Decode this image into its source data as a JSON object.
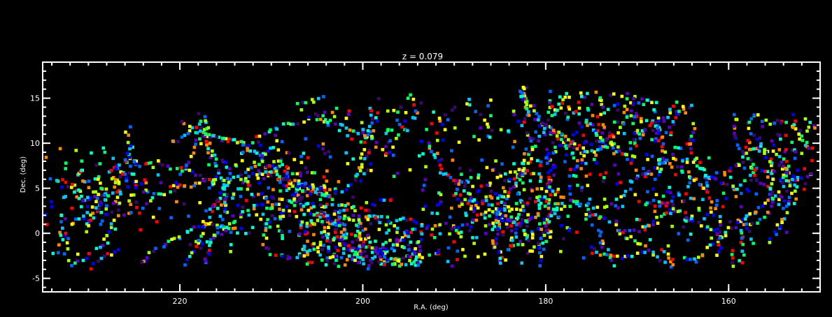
{
  "chart_data": {
    "type": "scatter",
    "title": "z = 0.079",
    "xlabel": "R.A. (deg)",
    "ylabel": "Dec. (deg)",
    "xlim": [
      235,
      150
    ],
    "ylim": [
      -6.5,
      19
    ],
    "x_reversed": true,
    "x_ticks": [
      220,
      200,
      180,
      160
    ],
    "y_ticks": [
      -5,
      0,
      5,
      10,
      15
    ],
    "x_minor_step": 2,
    "y_minor_step": 1,
    "grid": false,
    "colormap": "rainbow",
    "colors": {
      "background": "#000000",
      "axes": "#ffffff",
      "text": "#ffffff",
      "palette": [
        "#3a0a6b",
        "#5a00c0",
        "#0000ff",
        "#0066ff",
        "#00c8ff",
        "#00ffcc",
        "#00ff66",
        "#aaff00",
        "#ffff00",
        "#ff8800",
        "#ff0000"
      ]
    },
    "clusters": [
      {
        "x": 227.5,
        "y": 5.5,
        "n": 140,
        "sx": 2.5,
        "sy": 2.0
      },
      {
        "x": 208.0,
        "y": 5.5,
        "n": 120,
        "sx": 2.5,
        "sy": 2.5
      },
      {
        "x": 204.5,
        "y": 1.5,
        "n": 100,
        "sx": 2.5,
        "sy": 2.0
      },
      {
        "x": 201.0,
        "y": -1.5,
        "n": 90,
        "sx": 3.0,
        "sy": 1.5
      },
      {
        "x": 195.5,
        "y": -2.5,
        "n": 100,
        "sx": 3.0,
        "sy": 1.2
      },
      {
        "x": 186.0,
        "y": 4.0,
        "n": 180,
        "sx": 3.5,
        "sy": 2.5
      },
      {
        "x": 183.0,
        "y": 0.5,
        "n": 110,
        "sx": 3.0,
        "sy": 2.0
      },
      {
        "x": 176.0,
        "y": 8.0,
        "n": 90,
        "sx": 2.5,
        "sy": 3.0
      },
      {
        "x": 174.0,
        "y": 14.0,
        "n": 90,
        "sx": 3.5,
        "sy": 1.5
      },
      {
        "x": 169.0,
        "y": 11.0,
        "n": 60,
        "sx": 2.5,
        "sy": 2.5
      },
      {
        "x": 166.0,
        "y": 3.0,
        "n": 60,
        "sx": 2.5,
        "sy": 2.5
      },
      {
        "x": 157.0,
        "y": 3.5,
        "n": 45,
        "sx": 2.5,
        "sy": 2.5
      },
      {
        "x": 153.5,
        "y": 10.0,
        "n": 55,
        "sx": 2.0,
        "sy": 3.0
      },
      {
        "x": 215.0,
        "y": 3.0,
        "n": 50,
        "sx": 3.0,
        "sy": 3.0
      },
      {
        "x": 190.0,
        "y": 12.0,
        "n": 60,
        "sx": 4.0,
        "sy": 2.0
      },
      {
        "x": 199.0,
        "y": 11.0,
        "n": 60,
        "sx": 3.0,
        "sy": 2.5
      },
      {
        "x": 233.0,
        "y": 1.0,
        "n": 40,
        "sx": 1.5,
        "sy": 2.5
      }
    ],
    "filament_points": 1400,
    "footprint": {
      "dec_min": -3.5,
      "dec_max_by_ra": [
        [
          235,
          10.5
        ],
        [
          228,
          11.5
        ],
        [
          222,
          12.5
        ],
        [
          215,
          14.0
        ],
        [
          207,
          15.5
        ],
        [
          200,
          16.0
        ],
        [
          190,
          16.2
        ],
        [
          180,
          16.2
        ],
        [
          172,
          16.0
        ],
        [
          164,
          14.5
        ],
        [
          158,
          13.5
        ],
        [
          150,
          13.5
        ]
      ]
    },
    "marker_size_deg": 0.35,
    "seed": 79
  }
}
